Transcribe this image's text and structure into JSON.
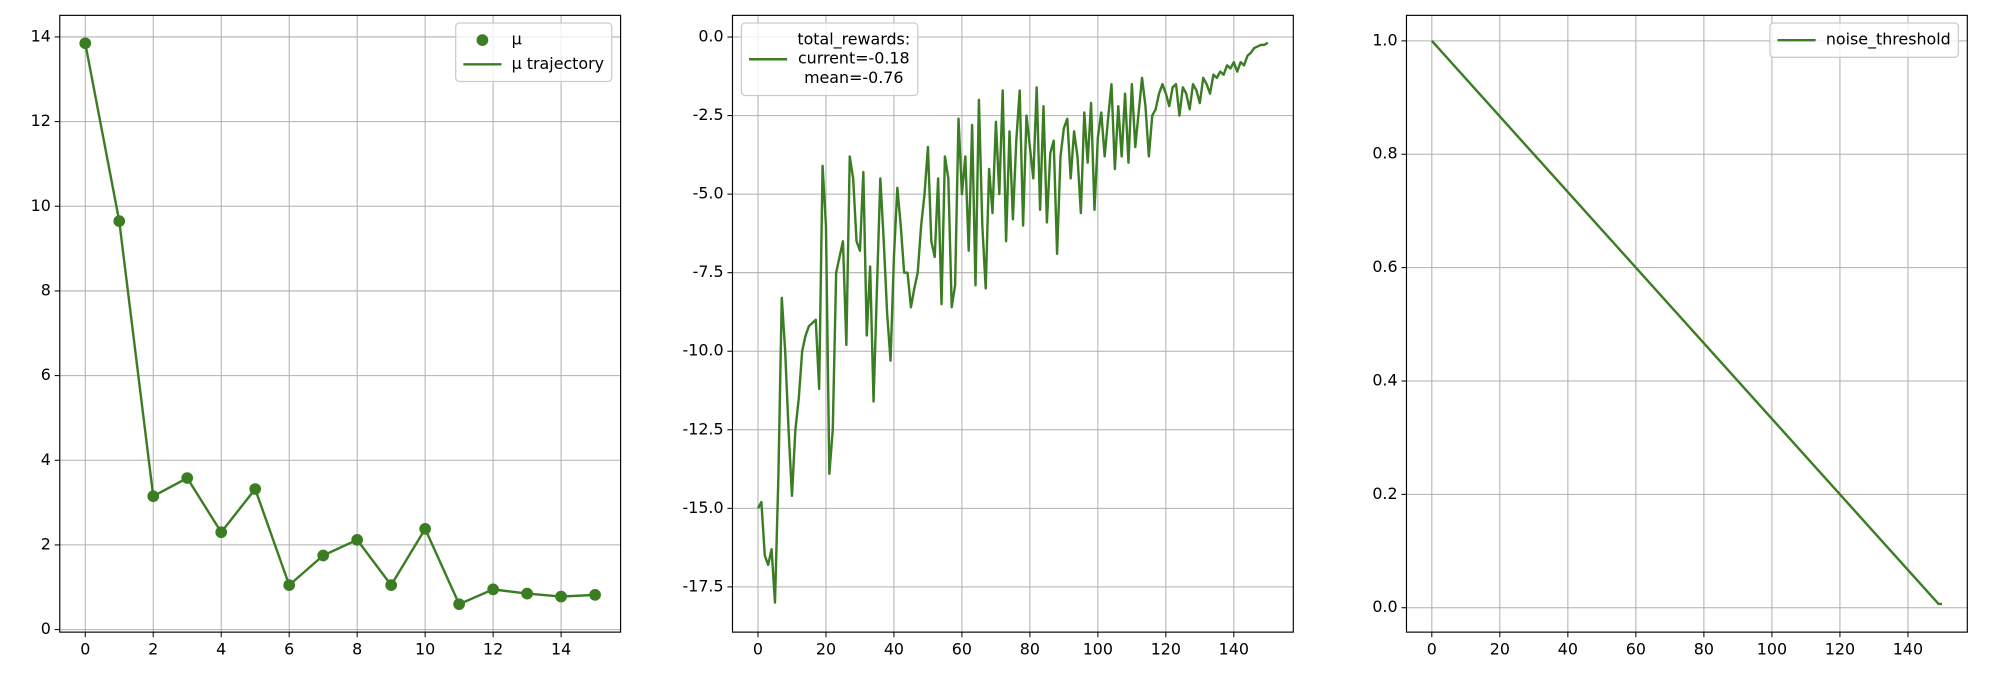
{
  "chart_data": [
    {
      "type": "line",
      "grid": true,
      "legend": "upper right",
      "xlim": [
        -0.75,
        15.75
      ],
      "ylim": [
        -0.06,
        14.51
      ],
      "xticks": [
        0,
        2,
        4,
        6,
        8,
        10,
        12,
        14
      ],
      "yticks": [
        0,
        2,
        4,
        6,
        8,
        10,
        12,
        14
      ],
      "series": [
        {
          "name": "μ",
          "color": "#3b7d23",
          "marker": true,
          "values": [
            13.85,
            9.65,
            3.15,
            3.58,
            2.3,
            3.32,
            1.05,
            1.75,
            2.12,
            1.05,
            2.38,
            0.6,
            0.95,
            0.85,
            0.78,
            0.82
          ]
        },
        {
          "name": "μ trajectory",
          "color": "#3b7d23",
          "values": [
            13.85,
            9.65,
            3.15,
            3.58,
            2.3,
            3.32,
            1.05,
            1.75,
            2.12,
            1.05,
            2.38,
            0.6,
            0.95,
            0.85,
            0.78,
            0.82
          ]
        }
      ]
    },
    {
      "type": "line",
      "grid": true,
      "legend": "upper left",
      "xlim": [
        -7.5,
        157.5
      ],
      "ylim": [
        -18.94,
        0.69
      ],
      "xticks": [
        0,
        20,
        40,
        60,
        80,
        100,
        120,
        140
      ],
      "yticks": [
        {
          "value": 0,
          "label": "0.0"
        },
        -2.5,
        {
          "value": -5,
          "label": "-5.0"
        },
        -7.5,
        {
          "value": -10,
          "label": "-10.0"
        },
        -12.5,
        {
          "value": -15,
          "label": "-15.0"
        },
        -17.5
      ],
      "series": [
        {
          "name": [
            "total_rewards:",
            "current=-0.18",
            "mean=-0.76"
          ],
          "color": "#3b7d23",
          "values": [
            -15,
            -14.8,
            -16.5,
            -16.8,
            -16.3,
            -18,
            -14,
            -8.3,
            -10,
            -12.5,
            -14.6,
            -12.5,
            -11.5,
            -10,
            -9.5,
            -9.2,
            -9.1,
            -9,
            -11.2,
            -4.1,
            -6,
            -13.9,
            -12.5,
            -7.5,
            -7,
            -6.5,
            -9.8,
            -3.8,
            -4.5,
            -6.5,
            -6.8,
            -4.3,
            -9.5,
            -7.3,
            -11.6,
            -8,
            -4.5,
            -6.5,
            -8.8,
            -10.3,
            -7,
            -4.8,
            -6,
            -7.5,
            -7.5,
            -8.6,
            -8,
            -7.5,
            -6,
            -5,
            -3.5,
            -6.5,
            -7,
            -4.5,
            -8.5,
            -3.8,
            -4.5,
            -8.6,
            -7.9,
            -2.6,
            -5,
            -3.8,
            -6.8,
            -2.8,
            -7.9,
            -2,
            -6,
            -8,
            -4.2,
            -5.6,
            -2.7,
            -5,
            -1.7,
            -6.5,
            -3,
            -5.8,
            -3.3,
            -1.7,
            -6,
            -2.5,
            -3.5,
            -4.5,
            -1.6,
            -5.5,
            -2.2,
            -5.9,
            -3.7,
            -3.3,
            -6.9,
            -3.8,
            -2.9,
            -2.6,
            -4.5,
            -3,
            -3.8,
            -5.6,
            -2.4,
            -4,
            -2.1,
            -5.5,
            -3.2,
            -2.4,
            -3.8,
            -2.6,
            -1.5,
            -4.2,
            -2.2,
            -3.8,
            -1.8,
            -4,
            -1.5,
            -3.5,
            -2.4,
            -1.3,
            -2.2,
            -3.8,
            -2.5,
            -2.3,
            -1.8,
            -1.5,
            -1.8,
            -2.2,
            -1.6,
            -1.5,
            -2.5,
            -1.6,
            -1.8,
            -2.3,
            -1.5,
            -1.7,
            -2.1,
            -1.3,
            -1.5,
            -1.8,
            -1.2,
            -1.3,
            -1.1,
            -1.2,
            -0.9,
            -1,
            -0.8,
            -1.1,
            -0.8,
            -0.9,
            -0.6,
            -0.5,
            -0.35,
            -0.3,
            -0.25,
            -0.25,
            -0.18
          ]
        }
      ]
    },
    {
      "type": "line",
      "grid": true,
      "legend": "upper right",
      "xlim": [
        -7.45,
        157.45
      ],
      "ylim": [
        -0.043,
        1.045
      ],
      "xticks": [
        0,
        20,
        40,
        60,
        80,
        100,
        120,
        140
      ],
      "yticks": [
        {
          "value": 0,
          "label": "0.0"
        },
        0.2,
        0.4,
        0.6,
        0.8,
        {
          "value": 1,
          "label": "1.0"
        }
      ],
      "x": [
        0,
        149,
        150
      ],
      "series": [
        {
          "name": "noise_threshold",
          "color": "#3b7d23",
          "values": [
            1,
            0.0067,
            0.0067
          ]
        }
      ]
    }
  ]
}
